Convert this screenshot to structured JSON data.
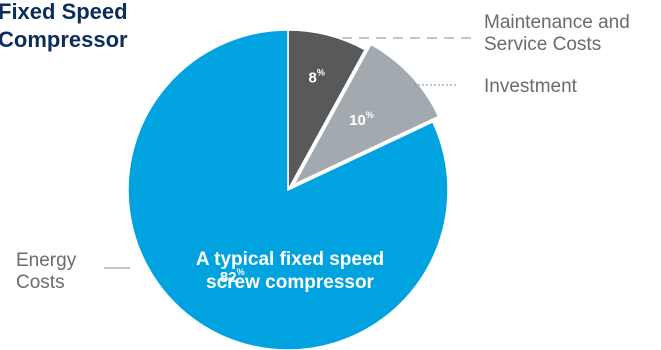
{
  "title": {
    "line1": "Fixed Speed",
    "line2": "Compressor"
  },
  "chart_data": {
    "type": "pie",
    "center_label": {
      "line1": "A typical fixed speed",
      "line2": "screw compressor"
    },
    "slices": [
      {
        "label_lines": [
          "Maintenance and",
          "Service Costs"
        ],
        "value": 8,
        "value_text": "8",
        "unit": "%",
        "color": "#58595b"
      },
      {
        "label_lines": [
          "Investment"
        ],
        "value": 10,
        "value_text": "10",
        "unit": "%",
        "color": "#a2aab0"
      },
      {
        "label_lines": [
          "Energy",
          "Costs"
        ],
        "value": 82,
        "value_text": "82",
        "unit": "%",
        "color": "#00a3e0"
      }
    ]
  },
  "colors": {
    "title": "#0b2d5b",
    "legend_text": "#6b6b6b",
    "value_text": "#ffffff"
  }
}
